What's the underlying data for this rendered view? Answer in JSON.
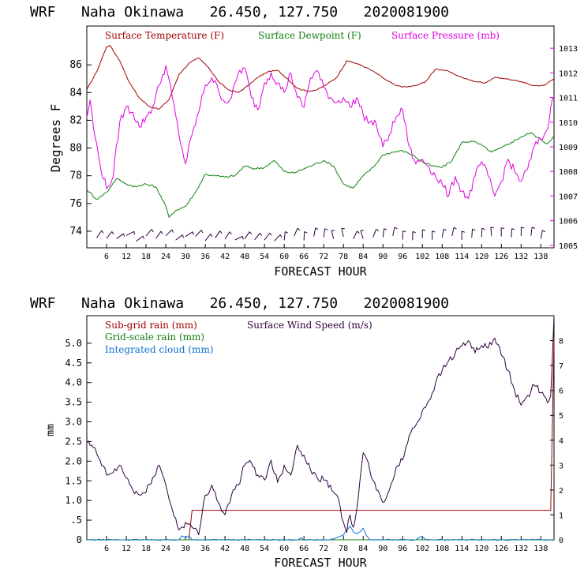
{
  "charts": [
    {
      "title": "WRF   Naha Okinawa   26.450, 127.750   2020081900",
      "xlabel": "FORECAST HOUR",
      "ylabel": "Degrees F",
      "legend": [
        {
          "label": "Surface Temperature (F)",
          "color": "#a00000"
        },
        {
          "label": "Surface Dewpoint (F)",
          "color": "#108010"
        },
        {
          "label": "Surface Pressure (mb)",
          "color": "#e000e0"
        }
      ],
      "xticks": [
        "6",
        "12",
        "18",
        "24",
        "30",
        "36",
        "42",
        "48",
        "54",
        "60",
        "66",
        "72",
        "78",
        "84",
        "90",
        "96",
        "102",
        "108",
        "114",
        "120",
        "126",
        "132",
        "138"
      ],
      "yticks": [
        "74",
        "76",
        "78",
        "80",
        "82",
        "84",
        "86"
      ],
      "y2ticks": [
        "1005",
        "1006",
        "1007",
        "1008",
        "1009",
        "1010",
        "1011",
        "1012",
        "1013"
      ]
    },
    {
      "title": "WRF   Naha Okinawa   26.450, 127.750   2020081900",
      "xlabel": "FORECAST HOUR",
      "ylabel": "mm",
      "legend": [
        {
          "label": "Sub-grid rain (mm)",
          "color": "#a00000"
        },
        {
          "label": "Surface Wind Speed (m/s)",
          "color": "#300040"
        },
        {
          "label": "Grid-scale rain (mm)",
          "color": "#108010"
        },
        {
          "label": "Integrated cloud (mm)",
          "color": "#1070d0"
        }
      ],
      "xticks": [
        "6",
        "12",
        "18",
        "24",
        "30",
        "36",
        "42",
        "48",
        "54",
        "60",
        "66",
        "72",
        "78",
        "84",
        "90",
        "96",
        "102",
        "108",
        "114",
        "120",
        "126",
        "132",
        "138"
      ],
      "yticks": [
        "0",
        ".5",
        "1.0",
        "1.5",
        "2.0",
        "2.5",
        "3.0",
        "3.5",
        "4.0",
        "4.5",
        "5.0"
      ],
      "y2ticks": [
        "0",
        "1",
        "2",
        "3",
        "4",
        "5",
        "6",
        "7",
        "8"
      ]
    }
  ],
  "chart_data": [
    {
      "type": "line",
      "title": "WRF   Naha Okinawa   26.450, 127.750   2020081900",
      "xlabel": "FORECAST HOUR",
      "ylabel": "Degrees F",
      "xlim": [
        0,
        142
      ],
      "ylim": [
        72.8,
        88.8
      ],
      "y2lim": [
        1004.9,
        1013.9
      ],
      "series": [
        {
          "name": "Surface Temperature (F)",
          "axis": "left",
          "x": [
            0,
            3,
            6,
            7,
            10,
            13,
            16,
            19,
            22,
            25,
            28,
            31,
            34,
            37,
            40,
            43,
            46,
            49,
            52,
            55,
            58,
            61,
            64,
            67,
            70,
            73,
            76,
            79,
            82,
            85,
            88,
            91,
            94,
            97,
            100,
            103,
            106,
            109,
            112,
            115,
            118,
            121,
            124,
            127,
            130,
            133,
            136,
            139,
            142
          ],
          "values": [
            84.2,
            85.5,
            87.3,
            87.4,
            86.3,
            84.7,
            83.6,
            83.0,
            82.8,
            83.5,
            85.3,
            86.1,
            86.5,
            85.8,
            84.8,
            84.2,
            84.0,
            84.5,
            85.1,
            85.5,
            85.6,
            85.0,
            84.3,
            84.1,
            84.2,
            84.6,
            85.1,
            86.3,
            86.1,
            85.8,
            85.4,
            84.9,
            84.5,
            84.4,
            84.5,
            84.8,
            85.7,
            85.6,
            85.3,
            85.0,
            84.8,
            84.7,
            85.1,
            85.0,
            84.9,
            84.7,
            84.5,
            84.5,
            85.0
          ]
        },
        {
          "name": "Surface Dewpoint (F)",
          "axis": "left",
          "x": [
            0,
            3,
            6,
            9,
            12,
            15,
            18,
            21,
            24,
            25,
            27,
            30,
            33,
            36,
            39,
            42,
            45,
            48,
            51,
            54,
            57,
            60,
            63,
            66,
            69,
            72,
            75,
            78,
            81,
            84,
            87,
            90,
            93,
            96,
            99,
            102,
            105,
            108,
            111,
            114,
            117,
            120,
            123,
            126,
            129,
            132,
            135,
            138,
            140,
            142
          ],
          "values": [
            77.0,
            76.3,
            76.8,
            77.8,
            77.4,
            77.2,
            77.4,
            77.2,
            75.8,
            75.0,
            75.5,
            75.8,
            76.8,
            78.1,
            78.0,
            77.9,
            78.0,
            78.7,
            78.5,
            78.6,
            79.1,
            78.3,
            78.2,
            78.5,
            78.8,
            79.1,
            78.7,
            77.4,
            77.1,
            78.0,
            78.6,
            79.5,
            79.7,
            79.8,
            79.5,
            79.0,
            78.7,
            78.6,
            79.1,
            80.4,
            80.5,
            80.2,
            79.7,
            80.0,
            80.4,
            80.8,
            81.1,
            80.6,
            80.3,
            80.9
          ]
        },
        {
          "name": "Surface Pressure (mb)",
          "axis": "right",
          "x": [
            0,
            1,
            2,
            4,
            6,
            8,
            10,
            12,
            14,
            16,
            18,
            20,
            22,
            24,
            26,
            28,
            30,
            32,
            34,
            36,
            38,
            40,
            42,
            44,
            46,
            48,
            50,
            52,
            54,
            56,
            58,
            60,
            62,
            64,
            66,
            68,
            70,
            72,
            74,
            76,
            78,
            80,
            82,
            84,
            86,
            88,
            90,
            92,
            94,
            96,
            98,
            100,
            102,
            104,
            106,
            108,
            110,
            112,
            114,
            116,
            118,
            120,
            122,
            124,
            126,
            128,
            130,
            132,
            134,
            136,
            138,
            140,
            141,
            142
          ],
          "values": [
            1010.2,
            1010.9,
            1009.8,
            1008.3,
            1007.3,
            1007.8,
            1010.0,
            1010.6,
            1010.4,
            1009.8,
            1010.2,
            1010.6,
            1011.5,
            1012.3,
            1011.0,
            1009.5,
            1008.3,
            1009.5,
            1010.4,
            1011.5,
            1011.8,
            1011.3,
            1010.8,
            1011.0,
            1012.0,
            1012.2,
            1011.0,
            1010.5,
            1011.6,
            1012.0,
            1011.6,
            1011.2,
            1012.0,
            1011.0,
            1010.6,
            1011.8,
            1012.1,
            1011.4,
            1011.0,
            1010.8,
            1011.0,
            1010.6,
            1011.0,
            1010.3,
            1010.0,
            1009.9,
            1009.0,
            1009.5,
            1010.2,
            1010.5,
            1009.0,
            1008.3,
            1008.5,
            1008.2,
            1007.8,
            1007.5,
            1007.0,
            1007.8,
            1007.2,
            1006.9,
            1007.8,
            1008.4,
            1007.8,
            1007.0,
            1007.6,
            1008.5,
            1008.0,
            1007.6,
            1008.1,
            1009.0,
            1009.3,
            1009.7,
            1010.6,
            1011.0
          ]
        }
      ],
      "wind_barbs": "row of wind barbs along the bottom of the panel"
    },
    {
      "type": "line",
      "title": "WRF   Naha Okinawa   26.450, 127.750   2020081900",
      "xlabel": "FORECAST HOUR",
      "ylabel": "mm",
      "xlim": [
        0,
        142
      ],
      "ylim": [
        0,
        5.7
      ],
      "y2lim": [
        0,
        9
      ],
      "series": [
        {
          "name": "Sub-grid rain (mm)",
          "axis": "left",
          "x": [
            0,
            30,
            31,
            32,
            140,
            141,
            142
          ],
          "values": [
            0,
            0,
            0,
            0.75,
            0.75,
            0.75,
            5.1
          ]
        },
        {
          "name": "Grid-scale rain (mm)",
          "axis": "left",
          "x": [
            0,
            142
          ],
          "values": [
            0,
            0
          ]
        },
        {
          "name": "Integrated cloud (mm)",
          "axis": "left",
          "x": [
            0,
            28,
            29,
            30,
            31,
            32,
            34,
            64,
            65,
            66,
            74,
            78,
            79,
            80,
            81,
            82,
            83,
            84,
            85,
            86,
            100,
            101,
            102,
            103,
            142
          ],
          "values": [
            0,
            0,
            0.1,
            0.05,
            0.1,
            0,
            0,
            0,
            0.05,
            0,
            0,
            0.12,
            0.25,
            0.35,
            0.2,
            0.15,
            0.2,
            0.3,
            0.1,
            0,
            0,
            0.05,
            0.08,
            0,
            0
          ]
        },
        {
          "name": "Surface Wind Speed (m/s)",
          "axis": "right",
          "x": [
            0,
            2,
            4,
            6,
            8,
            10,
            12,
            14,
            16,
            18,
            20,
            22,
            24,
            26,
            28,
            30,
            32,
            34,
            36,
            38,
            40,
            42,
            44,
            46,
            48,
            50,
            52,
            54,
            56,
            58,
            60,
            62,
            64,
            66,
            68,
            70,
            72,
            74,
            76,
            78,
            79,
            80,
            81,
            82,
            84,
            86,
            88,
            90,
            92,
            94,
            96,
            98,
            100,
            102,
            104,
            106,
            108,
            110,
            112,
            114,
            116,
            118,
            120,
            122,
            124,
            126,
            128,
            130,
            132,
            134,
            136,
            138,
            140,
            141,
            142
          ],
          "values": [
            3.9,
            3.7,
            3.2,
            2.6,
            2.7,
            3.0,
            2.5,
            2.0,
            1.8,
            1.9,
            2.5,
            3.0,
            2.2,
            1.2,
            0.4,
            0.7,
            0.5,
            0.2,
            1.8,
            2.2,
            1.5,
            1.0,
            1.8,
            2.2,
            3.0,
            3.1,
            2.6,
            2.4,
            3.2,
            2.3,
            3.0,
            2.6,
            3.8,
            3.4,
            2.8,
            2.5,
            2.4,
            2.2,
            1.8,
            0.7,
            0.3,
            1.0,
            0.5,
            1.2,
            3.5,
            2.8,
            2.0,
            1.5,
            2.0,
            2.9,
            3.2,
            4.2,
            4.6,
            5.2,
            5.6,
            6.3,
            6.8,
            7.2,
            7.5,
            7.8,
            8.0,
            7.5,
            7.8,
            7.7,
            8.1,
            7.4,
            6.8,
            6.0,
            5.4,
            5.8,
            6.2,
            5.9,
            5.5,
            5.8,
            9.0
          ]
        }
      ]
    }
  ]
}
